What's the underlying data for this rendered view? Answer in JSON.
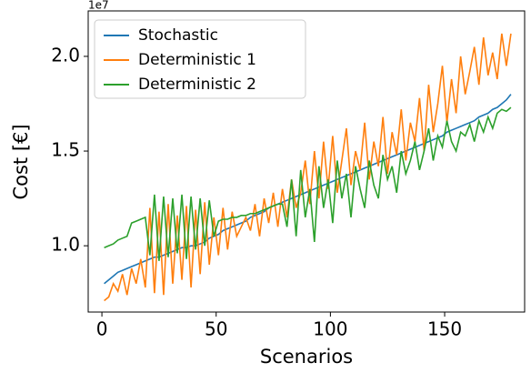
{
  "chart_data": {
    "type": "line",
    "offset_text": "1e7",
    "xlabel": "Scenarios",
    "ylabel": "Cost [€]",
    "x": [
      1,
      3,
      5,
      7,
      9,
      11,
      13,
      15,
      17,
      19,
      21,
      23,
      25,
      27,
      29,
      31,
      33,
      35,
      37,
      39,
      41,
      43,
      45,
      47,
      49,
      51,
      53,
      55,
      57,
      59,
      61,
      63,
      65,
      67,
      69,
      71,
      73,
      75,
      77,
      79,
      81,
      83,
      85,
      87,
      89,
      91,
      93,
      95,
      97,
      99,
      101,
      103,
      105,
      107,
      109,
      111,
      113,
      115,
      117,
      119,
      121,
      123,
      125,
      127,
      129,
      131,
      133,
      135,
      137,
      139,
      141,
      143,
      145,
      147,
      149,
      151,
      153,
      155,
      157,
      159,
      161,
      163,
      165,
      167,
      169,
      171,
      173,
      175,
      177,
      179
    ],
    "series": [
      {
        "name": "Stochastic",
        "color": "#1f77b4",
        "values": [
          0.8,
          0.82,
          0.84,
          0.86,
          0.87,
          0.88,
          0.89,
          0.9,
          0.91,
          0.92,
          0.93,
          0.94,
          0.94,
          0.95,
          0.96,
          0.97,
          0.98,
          0.99,
          0.99,
          1.0,
          1.0,
          1.01,
          1.02,
          1.04,
          1.05,
          1.06,
          1.08,
          1.09,
          1.1,
          1.11,
          1.12,
          1.13,
          1.15,
          1.16,
          1.17,
          1.18,
          1.2,
          1.21,
          1.22,
          1.23,
          1.24,
          1.25,
          1.26,
          1.27,
          1.28,
          1.29,
          1.3,
          1.31,
          1.32,
          1.33,
          1.34,
          1.35,
          1.36,
          1.37,
          1.38,
          1.39,
          1.4,
          1.41,
          1.42,
          1.43,
          1.44,
          1.45,
          1.46,
          1.47,
          1.48,
          1.49,
          1.5,
          1.51,
          1.52,
          1.53,
          1.54,
          1.55,
          1.56,
          1.57,
          1.58,
          1.6,
          1.61,
          1.62,
          1.63,
          1.64,
          1.65,
          1.66,
          1.68,
          1.69,
          1.7,
          1.72,
          1.73,
          1.75,
          1.77,
          1.8
        ]
      },
      {
        "name": "Deterministic 1",
        "color": "#ff7f0e",
        "values": [
          0.71,
          0.73,
          0.8,
          0.76,
          0.85,
          0.74,
          0.88,
          0.8,
          0.93,
          0.78,
          1.2,
          0.75,
          1.18,
          0.74,
          1.22,
          0.8,
          1.16,
          0.82,
          1.21,
          0.78,
          1.19,
          0.85,
          1.23,
          0.9,
          1.15,
          0.95,
          1.2,
          0.98,
          1.18,
          1.05,
          1.1,
          1.15,
          1.08,
          1.22,
          1.05,
          1.25,
          1.12,
          1.28,
          1.1,
          1.3,
          1.15,
          1.35,
          1.2,
          1.28,
          1.45,
          1.22,
          1.5,
          1.25,
          1.55,
          1.3,
          1.58,
          1.28,
          1.45,
          1.62,
          1.32,
          1.5,
          1.4,
          1.65,
          1.35,
          1.55,
          1.42,
          1.68,
          1.38,
          1.6,
          1.48,
          1.72,
          1.45,
          1.65,
          1.55,
          1.78,
          1.5,
          1.85,
          1.6,
          1.75,
          1.95,
          1.65,
          1.88,
          1.7,
          2.0,
          1.8,
          1.92,
          2.05,
          1.85,
          2.1,
          1.9,
          2.02,
          1.88,
          2.12,
          1.95,
          2.12
        ]
      },
      {
        "name": "Deterministic 2",
        "color": "#2ca02c",
        "values": [
          0.99,
          1.0,
          1.01,
          1.03,
          1.04,
          1.05,
          1.12,
          1.13,
          1.14,
          1.15,
          0.95,
          1.27,
          0.92,
          1.26,
          0.94,
          1.25,
          0.96,
          1.27,
          0.93,
          1.26,
          0.98,
          1.25,
          1.0,
          1.24,
          1.05,
          1.13,
          1.14,
          1.14,
          1.15,
          1.15,
          1.16,
          1.16,
          1.17,
          1.17,
          1.18,
          1.19,
          1.2,
          1.21,
          1.22,
          1.22,
          1.1,
          1.35,
          1.05,
          1.4,
          1.15,
          1.3,
          1.02,
          1.42,
          1.2,
          1.35,
          1.12,
          1.45,
          1.25,
          1.38,
          1.15,
          1.42,
          1.3,
          1.2,
          1.45,
          1.32,
          1.25,
          1.48,
          1.35,
          1.42,
          1.28,
          1.5,
          1.38,
          1.45,
          1.55,
          1.4,
          1.5,
          1.62,
          1.45,
          1.58,
          1.52,
          1.66,
          1.55,
          1.5,
          1.6,
          1.58,
          1.64,
          1.55,
          1.66,
          1.6,
          1.68,
          1.62,
          1.7,
          1.72,
          1.71,
          1.73
        ]
      }
    ],
    "xlim": [
      -6,
      185
    ],
    "ylim": [
      0.65,
      2.24
    ],
    "xticks": [
      0,
      50,
      100,
      150
    ],
    "yticks": [
      {
        "value": 1,
        "label": "1.0"
      },
      {
        "value": 1.5,
        "label": "1.5"
      },
      {
        "value": 2,
        "label": "2.0"
      }
    ],
    "legend": "upper left"
  }
}
